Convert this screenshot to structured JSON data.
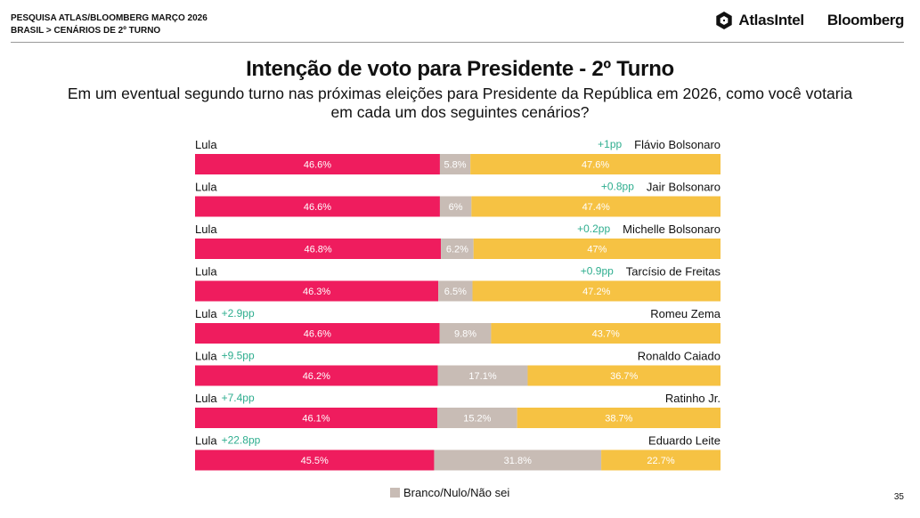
{
  "header": {
    "line1": "PESQUISA ATLAS/BLOOMBERG MARÇO 2026",
    "line2": "BRASIL > CENÁRIOS DE 2º TURNO",
    "logo_atlas": "AtlasIntel",
    "logo_bloomberg": "Bloomberg"
  },
  "page_number": "35",
  "colors": {
    "lula": "#ef1c5e",
    "blank": "#c8bcb5",
    "opponent": "#f6c243",
    "diff": "#2fae8f"
  },
  "chart_data": {
    "type": "bar",
    "stacked": true,
    "orientation": "horizontal",
    "title": "Intenção de voto para Presidente - 2º Turno",
    "subtitle_line1": "Em um eventual segundo turno nas próximas eleições para Presidente da República em 2026, como você votaria",
    "subtitle_line2": "em cada um dos seguintes cenários?",
    "legend": {
      "label": "Branco/Nulo/Não sei",
      "placement": "bottom"
    },
    "scenarios": [
      {
        "left": "Lula",
        "right": "Flávio Bolsonaro",
        "diff": "+1pp",
        "diff_side": "right",
        "values": [
          46.6,
          5.8,
          47.6
        ],
        "labels": [
          "46.6%",
          "5.8%",
          "47.6%"
        ]
      },
      {
        "left": "Lula",
        "right": "Jair Bolsonaro",
        "diff": "+0.8pp",
        "diff_side": "right",
        "values": [
          46.6,
          6.0,
          47.4
        ],
        "labels": [
          "46.6%",
          "6%",
          "47.4%"
        ]
      },
      {
        "left": "Lula",
        "right": "Michelle Bolsonaro",
        "diff": "+0.2pp",
        "diff_side": "right",
        "values": [
          46.8,
          6.2,
          47.0
        ],
        "labels": [
          "46.8%",
          "6.2%",
          "47%"
        ]
      },
      {
        "left": "Lula",
        "right": "Tarcísio de Freitas",
        "diff": "+0.9pp",
        "diff_side": "right",
        "values": [
          46.3,
          6.5,
          47.2
        ],
        "labels": [
          "46.3%",
          "6.5%",
          "47.2%"
        ]
      },
      {
        "left": "Lula",
        "right": "Romeu Zema",
        "diff": "+2.9pp",
        "diff_side": "left",
        "values": [
          46.6,
          9.8,
          43.7
        ],
        "labels": [
          "46.6%",
          "9.8%",
          "43.7%"
        ]
      },
      {
        "left": "Lula",
        "right": "Ronaldo Caiado",
        "diff": "+9.5pp",
        "diff_side": "left",
        "values": [
          46.2,
          17.1,
          36.7
        ],
        "labels": [
          "46.2%",
          "17.1%",
          "36.7%"
        ]
      },
      {
        "left": "Lula",
        "right": "Ratinho Jr.",
        "diff": "+7.4pp",
        "diff_side": "left",
        "values": [
          46.1,
          15.2,
          38.7
        ],
        "labels": [
          "46.1%",
          "15.2%",
          "38.7%"
        ]
      },
      {
        "left": "Lula",
        "right": "Eduardo Leite",
        "diff": "+22.8pp",
        "diff_side": "left",
        "values": [
          45.5,
          31.8,
          22.7
        ],
        "labels": [
          "45.5%",
          "31.8%",
          "22.7%"
        ]
      }
    ]
  }
}
